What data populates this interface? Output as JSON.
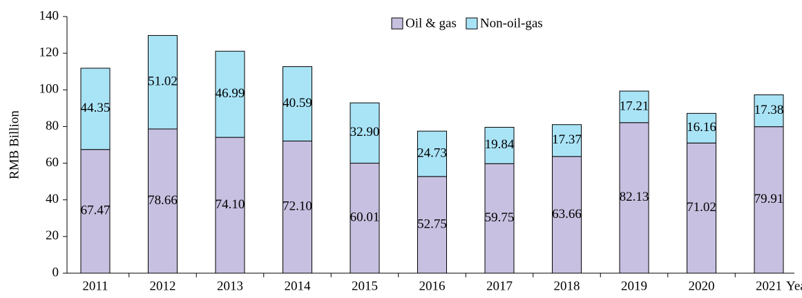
{
  "chart_data": {
    "type": "stacked_bar",
    "ylabel": "RMB Billion",
    "xlabel": "Year",
    "categories": [
      "2011",
      "2012",
      "2013",
      "2014",
      "2015",
      "2016",
      "2017",
      "2018",
      "2019",
      "2020",
      "2021"
    ],
    "series": [
      {
        "name": "Oil & gas",
        "color": "#c7c0e0",
        "values": [
          67.47,
          78.66,
          74.1,
          72.1,
          60.01,
          52.75,
          59.75,
          63.66,
          82.13,
          71.02,
          79.91
        ],
        "value_labels": [
          "67.47",
          "78.66",
          "74.10",
          "72.10",
          "60.01",
          "52.75",
          "59.75",
          "63.66",
          "82.13",
          "71.02",
          "79.91"
        ]
      },
      {
        "name": "Non-oil-gas",
        "color": "#a9e3f6",
        "values": [
          44.35,
          51.02,
          46.99,
          40.59,
          32.9,
          24.73,
          19.84,
          17.37,
          17.21,
          16.16,
          17.38
        ],
        "value_labels": [
          "44.35",
          "51.02",
          "46.99",
          "40.59",
          "32.90",
          "24.73",
          "19.84",
          "17.37",
          "17.21",
          "16.16",
          "17.38"
        ]
      }
    ],
    "ylim": [
      0,
      140
    ],
    "yticks": [
      0,
      20,
      40,
      60,
      80,
      100,
      120,
      140
    ],
    "grid": false,
    "legend": "top"
  }
}
